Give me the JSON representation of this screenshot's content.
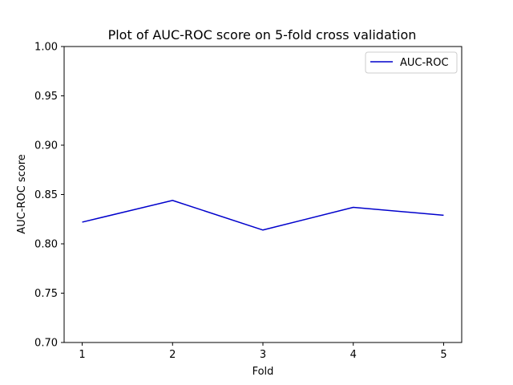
{
  "chart_data": {
    "type": "line",
    "title": "Plot of AUC-ROC score on 5-fold cross validation",
    "xlabel": "Fold",
    "ylabel": "AUC-ROC score",
    "x": [
      1,
      2,
      3,
      4,
      5
    ],
    "series": [
      {
        "name": "AUC-ROC",
        "color": "#0000cc",
        "values": [
          0.822,
          0.844,
          0.814,
          0.837,
          0.829
        ]
      }
    ],
    "xticks": [
      "1",
      "2",
      "3",
      "4",
      "5"
    ],
    "yticks": [
      "0.70",
      "0.75",
      "0.80",
      "0.85",
      "0.90",
      "0.95",
      "1.00"
    ],
    "xlim": [
      0.8,
      5.2
    ],
    "ylim": [
      0.7,
      1.0
    ],
    "grid": false,
    "legend_position": "top-right"
  }
}
